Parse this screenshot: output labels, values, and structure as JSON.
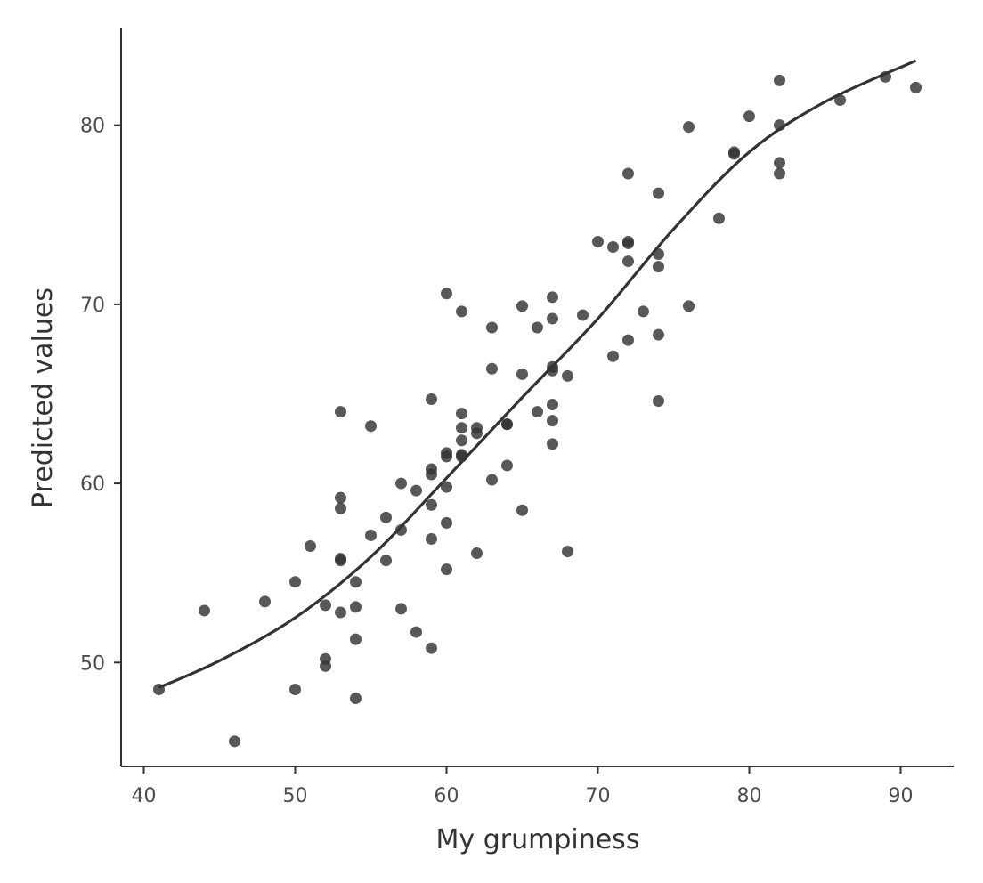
{
  "chart_data": {
    "type": "scatter",
    "title": "",
    "xlabel": "My grumpiness",
    "ylabel": "Predicted values",
    "xlim": [
      38.5,
      93.5
    ],
    "ylim": [
      44.2,
      85.4
    ],
    "xticks": [
      40,
      50,
      60,
      70,
      80,
      90
    ],
    "yticks": [
      50,
      60,
      70,
      80
    ],
    "grid": false,
    "legend": "none",
    "colors": {
      "points": "#333333",
      "line": "#333333",
      "axis": "#333333",
      "tick_label": "#4d4d4d",
      "axis_title": "#333333"
    },
    "series": [
      {
        "kind": "points",
        "x": [
          41,
          44,
          46,
          48,
          50,
          50,
          51,
          52,
          52,
          52,
          53,
          53,
          53,
          53,
          53,
          53,
          54,
          54,
          54,
          54,
          55,
          55,
          56,
          56,
          57,
          57,
          57,
          58,
          58,
          59,
          59,
          59,
          59,
          59,
          59,
          60,
          60,
          60,
          60,
          60,
          60,
          61,
          61,
          61,
          61,
          61,
          61,
          62,
          62,
          62,
          63,
          63,
          63,
          64,
          64,
          64,
          65,
          65,
          65,
          66,
          66,
          67,
          67,
          67,
          67,
          67,
          67,
          67,
          68,
          68,
          69,
          70,
          71,
          71,
          72,
          72,
          72,
          72,
          72,
          73,
          74,
          74,
          74,
          74,
          74,
          76,
          76,
          78,
          79,
          79,
          80,
          82,
          82,
          82,
          82,
          86,
          89,
          91
        ],
        "y": [
          48.5,
          52.9,
          45.6,
          53.4,
          54.5,
          48.5,
          56.5,
          53.2,
          50.2,
          49.8,
          64.0,
          59.2,
          58.6,
          55.8,
          55.7,
          52.8,
          54.5,
          53.1,
          51.3,
          48.0,
          63.2,
          57.1,
          58.1,
          55.7,
          60.0,
          57.4,
          53.0,
          59.6,
          51.7,
          64.7,
          60.8,
          60.5,
          58.8,
          56.9,
          50.8,
          70.6,
          61.7,
          61.5,
          59.8,
          57.8,
          55.2,
          69.6,
          63.9,
          63.1,
          62.4,
          61.6,
          61.5,
          63.1,
          62.8,
          56.1,
          68.7,
          66.4,
          60.2,
          63.3,
          63.3,
          61.0,
          69.9,
          66.1,
          58.5,
          68.7,
          64.0,
          70.4,
          69.2,
          66.5,
          66.3,
          64.4,
          63.5,
          62.2,
          66.0,
          56.2,
          69.4,
          73.5,
          73.2,
          67.1,
          77.3,
          73.5,
          73.4,
          72.4,
          68.0,
          69.6,
          76.2,
          72.8,
          72.1,
          68.3,
          64.6,
          79.9,
          69.9,
          74.8,
          78.5,
          78.4,
          80.5,
          82.5,
          80.0,
          77.9,
          77.3,
          81.4,
          82.7,
          82.1
        ]
      },
      {
        "kind": "smooth",
        "x": [
          41,
          45,
          50,
          55,
          60,
          65,
          70,
          75,
          80,
          85,
          91
        ],
        "y": [
          48.6,
          50.1,
          52.5,
          55.9,
          60.3,
          64.8,
          69.2,
          74.2,
          78.5,
          81.3,
          83.6
        ]
      }
    ]
  }
}
